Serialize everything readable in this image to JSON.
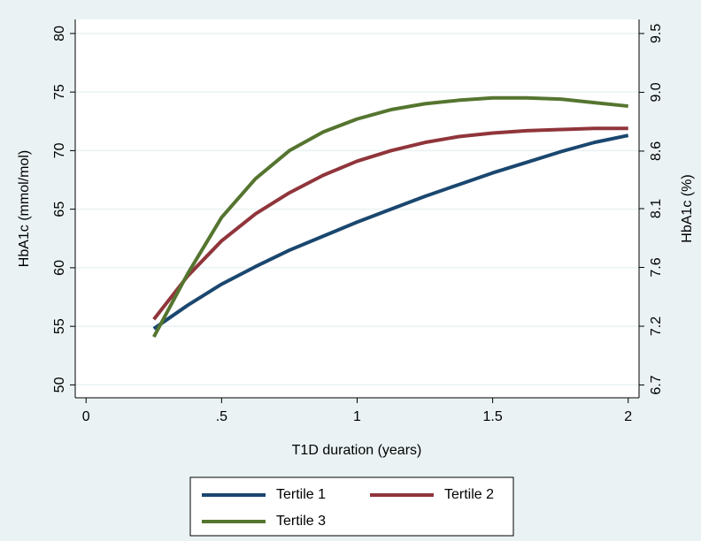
{
  "chart_data": {
    "type": "line",
    "x_label": "T1D duration (years)",
    "y_label": "HbA1c (mmol/mol)",
    "y2_label": "HbA1c (%)",
    "x": [
      0.25,
      0.375,
      0.5,
      0.625,
      0.75,
      0.875,
      1,
      1.125,
      1.25,
      1.375,
      1.5,
      1.625,
      1.75,
      1.875,
      2
    ],
    "series": [
      {
        "name": "Tertile 1",
        "color": "#1a476f",
        "values": [
          54.8,
          56.8,
          58.6,
          60.1,
          61.5,
          62.7,
          63.9,
          65.0,
          66.1,
          67.1,
          68.1,
          69.0,
          69.9,
          70.7,
          71.3
        ]
      },
      {
        "name": "Tertile 2",
        "color": "#90353b",
        "values": [
          55.6,
          59.3,
          62.3,
          64.6,
          66.4,
          67.9,
          69.1,
          70.0,
          70.7,
          71.2,
          71.5,
          71.7,
          71.8,
          71.9,
          71.9
        ]
      },
      {
        "name": "Tertile 3",
        "color": "#55752f",
        "values": [
          54.1,
          59.5,
          64.3,
          67.6,
          70.0,
          71.6,
          72.7,
          73.5,
          74.0,
          74.3,
          74.5,
          74.5,
          74.4,
          74.1,
          73.8
        ]
      }
    ],
    "xlim": [
      -0.04,
      2.04
    ],
    "xticks": [
      0,
      {
        "value": 0.5,
        "label": ".5"
      },
      1,
      1.5,
      2
    ],
    "ylim": [
      48.9,
      81.2
    ],
    "yticks": [
      50,
      55,
      60,
      65,
      70,
      75,
      80
    ],
    "y2lim": [
      6.62,
      9.58
    ],
    "y2ticks": [
      {
        "value": 6.72,
        "label": "6.7"
      },
      {
        "value": 7.18,
        "label": "7.2"
      },
      {
        "value": 7.64,
        "label": "7.6"
      },
      {
        "value": 8.1,
        "label": "8.1"
      },
      {
        "value": 8.55,
        "label": "8.6"
      },
      {
        "value": 9.01,
        "label": "9.0"
      },
      {
        "value": 9.47,
        "label": "9.5"
      }
    ],
    "grid": true,
    "legend": "bottom"
  }
}
